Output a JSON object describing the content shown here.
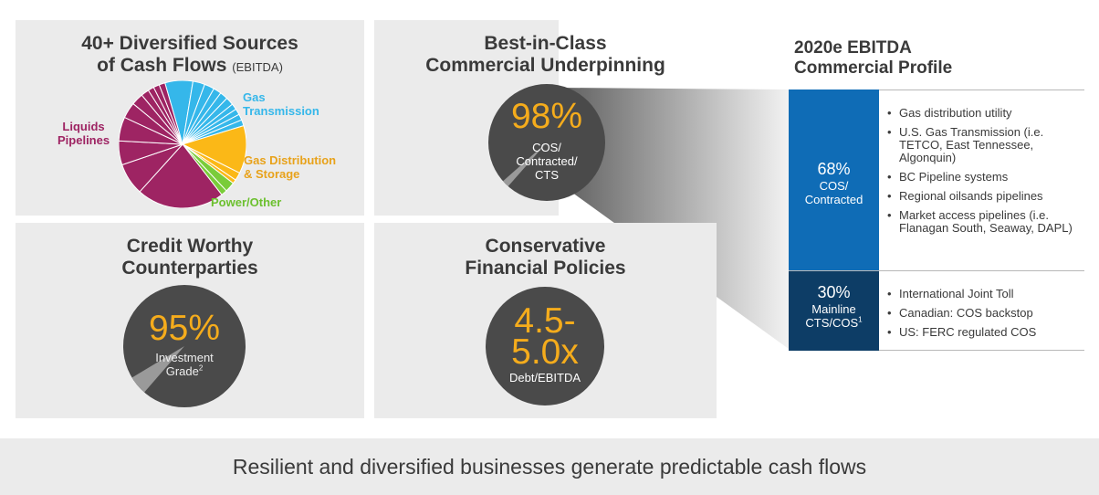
{
  "panels": {
    "diversified": {
      "title_line1": "40+ Diversified Sources",
      "title_line2": "of Cash Flows",
      "title_small": "(EBITDA)"
    },
    "commercial": {
      "title_line1": "Best-in-Class",
      "title_line2": "Commercial Underpinning",
      "big_value": "98%",
      "sub1": "COS/",
      "sub2": "Contracted/",
      "sub3": "CTS",
      "level_fraction": 0.98
    },
    "credit": {
      "title_line1": "Credit Worthy",
      "title_line2": "Counterparties",
      "big_value": "95%",
      "sub1": "Investment",
      "sub2": "Grade",
      "footnote": "2",
      "level_fraction": 0.95
    },
    "financial": {
      "title_line1": "Conservative",
      "title_line2": "Financial Policies",
      "big_line1": "4.5-",
      "big_line2": "5.0x",
      "sub": "Debt/EBITDA"
    }
  },
  "chart_data": {
    "type": "pie",
    "title": "40+ Diversified Sources of Cash Flows (EBITDA)",
    "series": [
      {
        "name": "Gas Transmission",
        "color": "#35b7ea",
        "slices": [
          7,
          3,
          2.5,
          2,
          2,
          2,
          1.5,
          1.5,
          1.5,
          1.5
        ]
      },
      {
        "name": "Gas Distribution & Storage",
        "color": "#fbb817",
        "slices": [
          12,
          2,
          1
        ]
      },
      {
        "name": "Power/Other",
        "color": "#7acc3a",
        "slices": [
          2.5,
          1.5
        ]
      },
      {
        "name": "Liquids Pipelines",
        "color": "#9e2463",
        "slices": [
          22,
          8,
          6,
          6,
          4,
          3,
          2,
          1.5,
          1.5,
          1.5
        ]
      }
    ],
    "labels": {
      "gas_transmission": [
        "Gas",
        "Transmission"
      ],
      "gas_distribution": [
        "Gas Distribution",
        "& Storage"
      ],
      "power_other": "Power/Other",
      "liquids": [
        "Liquids",
        "Pipelines"
      ]
    }
  },
  "profile": {
    "title_line1": "2020e EBITDA",
    "title_line2": "Commercial Profile",
    "top_block": {
      "pct": "68%",
      "sub1": "COS/",
      "sub2": "Contracted",
      "color": "#0f6cb6",
      "bullets": [
        "Gas distribution utility",
        "U.S. Gas Transmission (i.e. TETCO, East Tennessee, Algonquin)",
        "BC Pipeline systems",
        "Regional oilsands pipelines",
        "Market access pipelines (i.e. Flanagan South, Seaway, DAPL)"
      ]
    },
    "bottom_block": {
      "pct": "30%",
      "sub1": "Mainline",
      "sub2": "CTS/COS",
      "footnote": "1",
      "color": "#0d3d66",
      "bullets": [
        "International Joint Toll",
        "Canadian: COS backstop",
        "US: FERC regulated COS"
      ]
    }
  },
  "footer": {
    "text": "Resilient and diversified businesses generate predictable cash flows"
  },
  "colors": {
    "panel_bg": "#ebebeb",
    "circle": "#4a4a4a",
    "accent_orange": "#f5ac1c"
  }
}
